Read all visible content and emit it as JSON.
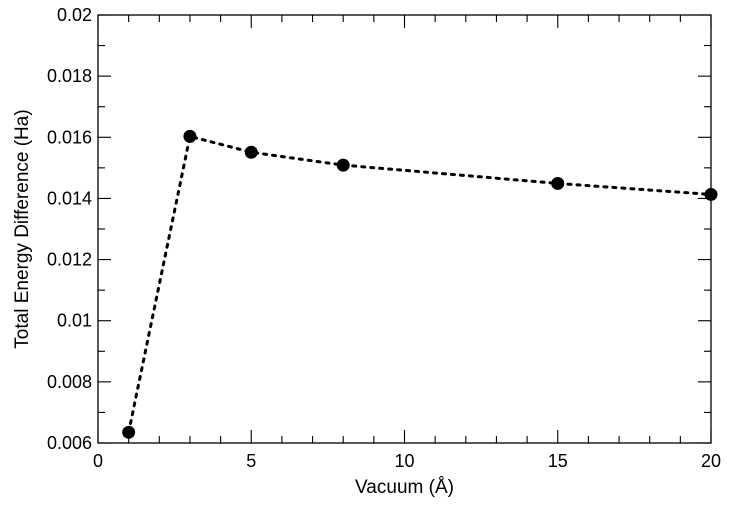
{
  "chart_data": {
    "type": "scatter",
    "title": "",
    "xlabel": "Vacuum (Å)",
    "ylabel": "Total Energy Difference (Ha)",
    "xlim": [
      0,
      20
    ],
    "ylim": [
      0.006,
      0.02
    ],
    "x_ticks": [
      0,
      5,
      10,
      15,
      20
    ],
    "x_tick_labels": [
      "0",
      "5",
      "10",
      "15",
      "20"
    ],
    "x_minor_step": 1,
    "y_ticks": [
      0.006,
      0.008,
      0.01,
      0.012,
      0.014,
      0.016,
      0.018,
      0.02
    ],
    "y_tick_labels": [
      "0.006",
      "0.008",
      "0.01",
      "0.012",
      "0.014",
      "0.016",
      "0.018",
      "0.02"
    ],
    "y_minor_step": 0.001,
    "grid": false,
    "line_style": "dotted",
    "marker": "filled-circle",
    "series": [
      {
        "x": [
          1,
          3,
          5,
          8,
          15,
          20
        ],
        "y": [
          0.00635,
          0.01603,
          0.01551,
          0.01509,
          0.01449,
          0.01413
        ],
        "color": "#000000"
      }
    ]
  }
}
